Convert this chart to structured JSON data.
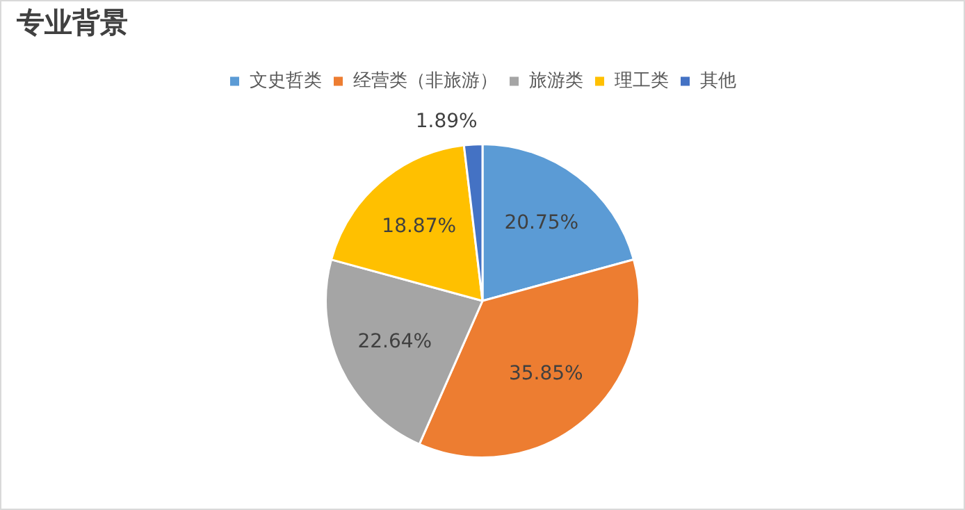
{
  "chart_data": {
    "type": "pie",
    "title": "专业背景",
    "categories": [
      "文史哲类",
      "经营类（非旅游）",
      "旅游类",
      "理工类",
      "其他"
    ],
    "values": [
      20.75,
      35.85,
      22.64,
      18.87,
      1.89
    ],
    "colors": [
      "#5b9bd5",
      "#ed7d31",
      "#a5a5a5",
      "#ffc000",
      "#4472c4"
    ],
    "value_labels": [
      "20.75%",
      "35.85%",
      "22.64%",
      "18.87%",
      "1.89%"
    ],
    "legend": "top"
  }
}
